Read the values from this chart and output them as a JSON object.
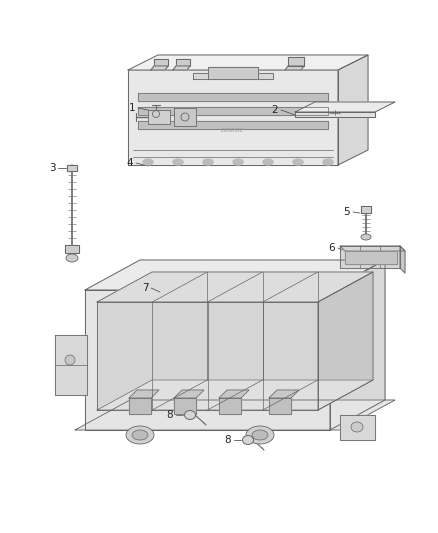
{
  "background_color": "#ffffff",
  "line_color": "#666666",
  "label_color": "#333333",
  "fig_width": 4.38,
  "fig_height": 5.33,
  "dpi": 100,
  "lw": 0.7,
  "fill_top": "#eeeeee",
  "fill_front": "#e2e2e2",
  "fill_right": "#d8d8d8",
  "fill_tray": "#e8e8e8"
}
